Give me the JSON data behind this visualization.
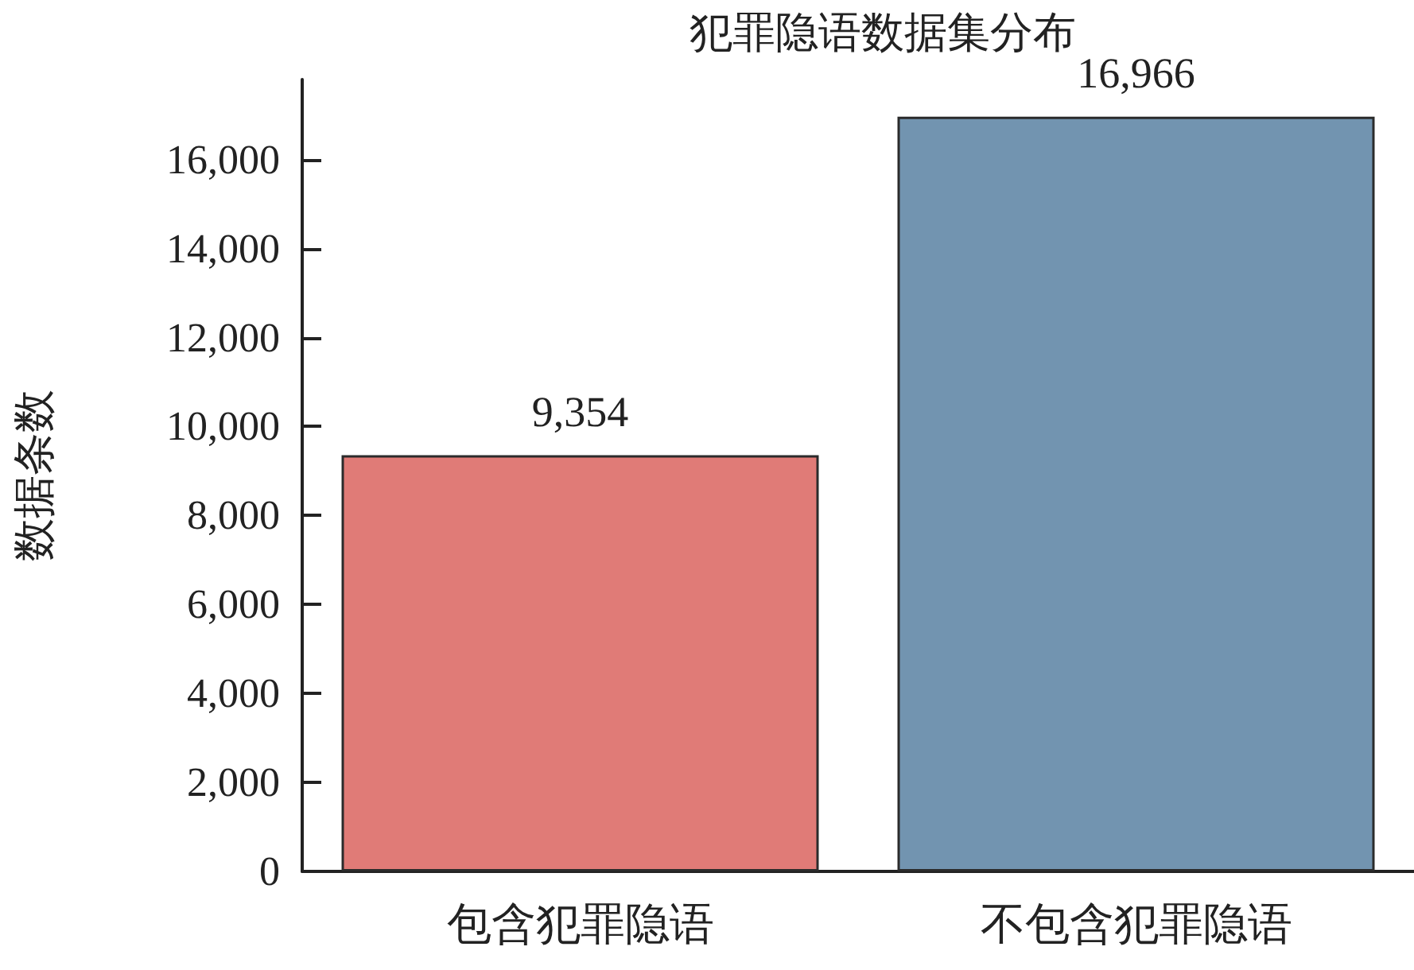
{
  "chart_data": {
    "type": "bar",
    "title": "犯罪隐语数据集分布",
    "ylabel": "数据条数",
    "categories": [
      "包含犯罪隐语",
      "不包含犯罪隐语"
    ],
    "values": [
      9354,
      16966
    ],
    "colors": [
      "#e07b77",
      "#7294b0"
    ],
    "value_labels": [
      "9,354",
      "16,966"
    ],
    "ylim": [
      0,
      17800
    ],
    "yticks": [
      0,
      {
        "value": 2000,
        "label": "2,000"
      },
      {
        "value": 4000,
        "label": "4,000"
      },
      {
        "value": 6000,
        "label": "6,000"
      },
      {
        "value": 8000,
        "label": "8,000"
      },
      {
        "value": 10000,
        "label": "10,000"
      },
      {
        "value": 12000,
        "label": "12,000"
      },
      {
        "value": 14000,
        "label": "14,000"
      },
      {
        "value": 16000,
        "label": "16,000"
      }
    ],
    "grid": false
  }
}
